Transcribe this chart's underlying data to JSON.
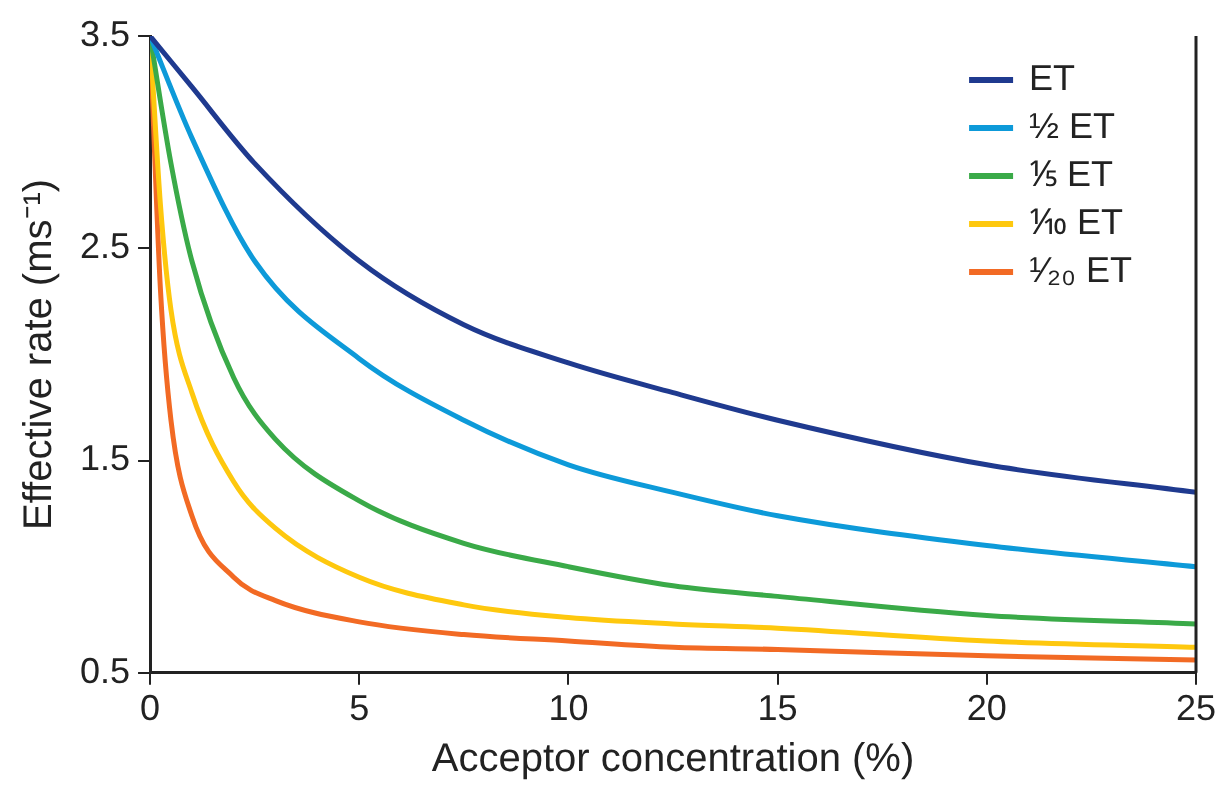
{
  "chart_data": {
    "type": "line",
    "xlabel": "Acceptor concentration (%)",
    "ylabel": "Effective rate (ms⁻¹)",
    "xlim": [
      0,
      25
    ],
    "xticks": [
      0,
      5,
      10,
      15,
      20,
      25
    ],
    "ylim": [
      0.5,
      3.5
    ],
    "yticks": [
      0.5,
      1.5,
      2.5,
      3.5
    ],
    "grid": false,
    "legend": "top right",
    "marker": "none",
    "line_style": "solid",
    "series": [
      {
        "name": "ET",
        "color": "#1f3a8f",
        "x": [
          0,
          1,
          2.5,
          5,
          7.5,
          10,
          12.5,
          15,
          20,
          25
        ],
        "values": [
          3.5,
          3.26,
          2.9,
          2.44,
          2.14,
          1.96,
          1.82,
          1.69,
          1.48,
          1.35
        ]
      },
      {
        "name": "½ ET",
        "color": "#0d9ad9",
        "x": [
          0,
          1,
          2.5,
          5,
          7.5,
          10,
          12.5,
          15,
          20,
          25
        ],
        "values": [
          3.5,
          3.02,
          2.44,
          1.98,
          1.69,
          1.48,
          1.35,
          1.24,
          1.1,
          1.0
        ]
      },
      {
        "name": "⅕ ET",
        "color": "#3aaa48",
        "x": [
          0,
          0.5,
          1,
          2,
          3,
          5,
          7.5,
          10,
          12.5,
          15,
          20,
          25
        ],
        "values": [
          3.5,
          2.9,
          2.44,
          1.89,
          1.6,
          1.31,
          1.11,
          1.0,
          0.91,
          0.86,
          0.77,
          0.73
        ]
      },
      {
        "name": "⅒ ET",
        "color": "#fec80e",
        "x": [
          0,
          0.25,
          0.5,
          1,
          2,
          3,
          5,
          7.5,
          10,
          12.5,
          15,
          20,
          25
        ],
        "values": [
          3.5,
          2.7,
          2.21,
          1.82,
          1.4,
          1.18,
          0.95,
          0.82,
          0.76,
          0.73,
          0.71,
          0.65,
          0.62
        ]
      },
      {
        "name": "¹⁄₂₀ ET",
        "color": "#f26a24",
        "x": [
          0,
          0.25,
          0.5,
          1,
          2,
          3,
          5,
          7.5,
          10,
          12.5,
          15,
          20,
          25
        ],
        "values": [
          3.5,
          2.3,
          1.69,
          1.24,
          0.95,
          0.84,
          0.74,
          0.68,
          0.65,
          0.62,
          0.61,
          0.58,
          0.56
        ]
      }
    ]
  }
}
